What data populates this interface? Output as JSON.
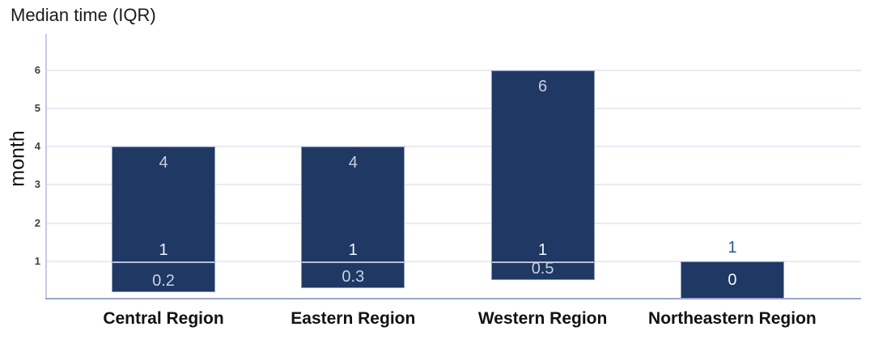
{
  "chart_data": {
    "type": "bar",
    "title": "Median time (IQR)",
    "ylabel": "month",
    "xlabel": "",
    "ylim": [
      0,
      6.95
    ],
    "yticks": [
      1,
      2,
      3,
      4,
      5,
      6
    ],
    "grid": true,
    "legend": false,
    "categories": [
      "Central Region",
      "Eastern Region",
      "Western Region",
      "Northeastern Region"
    ],
    "bars": [
      {
        "category": "Central Region",
        "low": 0.2,
        "median": 1,
        "high": 4,
        "low_label": "0.2",
        "median_label": "1",
        "high_label": "4",
        "high_label_position": "inside",
        "low_label_position": "bottom",
        "median_line": true
      },
      {
        "category": "Eastern Region",
        "low": 0.3,
        "median": 1,
        "high": 4,
        "low_label": "0.3",
        "median_label": "1",
        "high_label": "4",
        "high_label_position": "inside",
        "low_label_position": "bottom",
        "median_line": true
      },
      {
        "category": "Western Region",
        "low": 0.5,
        "median": 1,
        "high": 6,
        "low_label": "0.5",
        "median_label": "1",
        "high_label": "6",
        "high_label_position": "inside",
        "low_label_position": "bottom",
        "median_line": true
      },
      {
        "category": "Northeastern Region",
        "low": 0,
        "median": null,
        "high": 1,
        "low_label": "0",
        "median_label": null,
        "high_label": "1",
        "high_label_position": "above",
        "low_label_position": "center",
        "median_line": false
      }
    ],
    "colors": {
      "bar_fill": "#1f3864",
      "bar_border": "#8b9cb8",
      "median_line": "#b7c1d8",
      "label_inside_light": "#c6d0e2",
      "label_inside_white": "#f2f6fc",
      "label_outside": "#2e5395",
      "gridline": "#e8eaf3",
      "axis_y": "#c5cae2",
      "axis_x": "#9aa5c9",
      "tick_text": "#3f3f3f",
      "title_text": "#1a1a1a",
      "category_text": "#121212"
    }
  }
}
